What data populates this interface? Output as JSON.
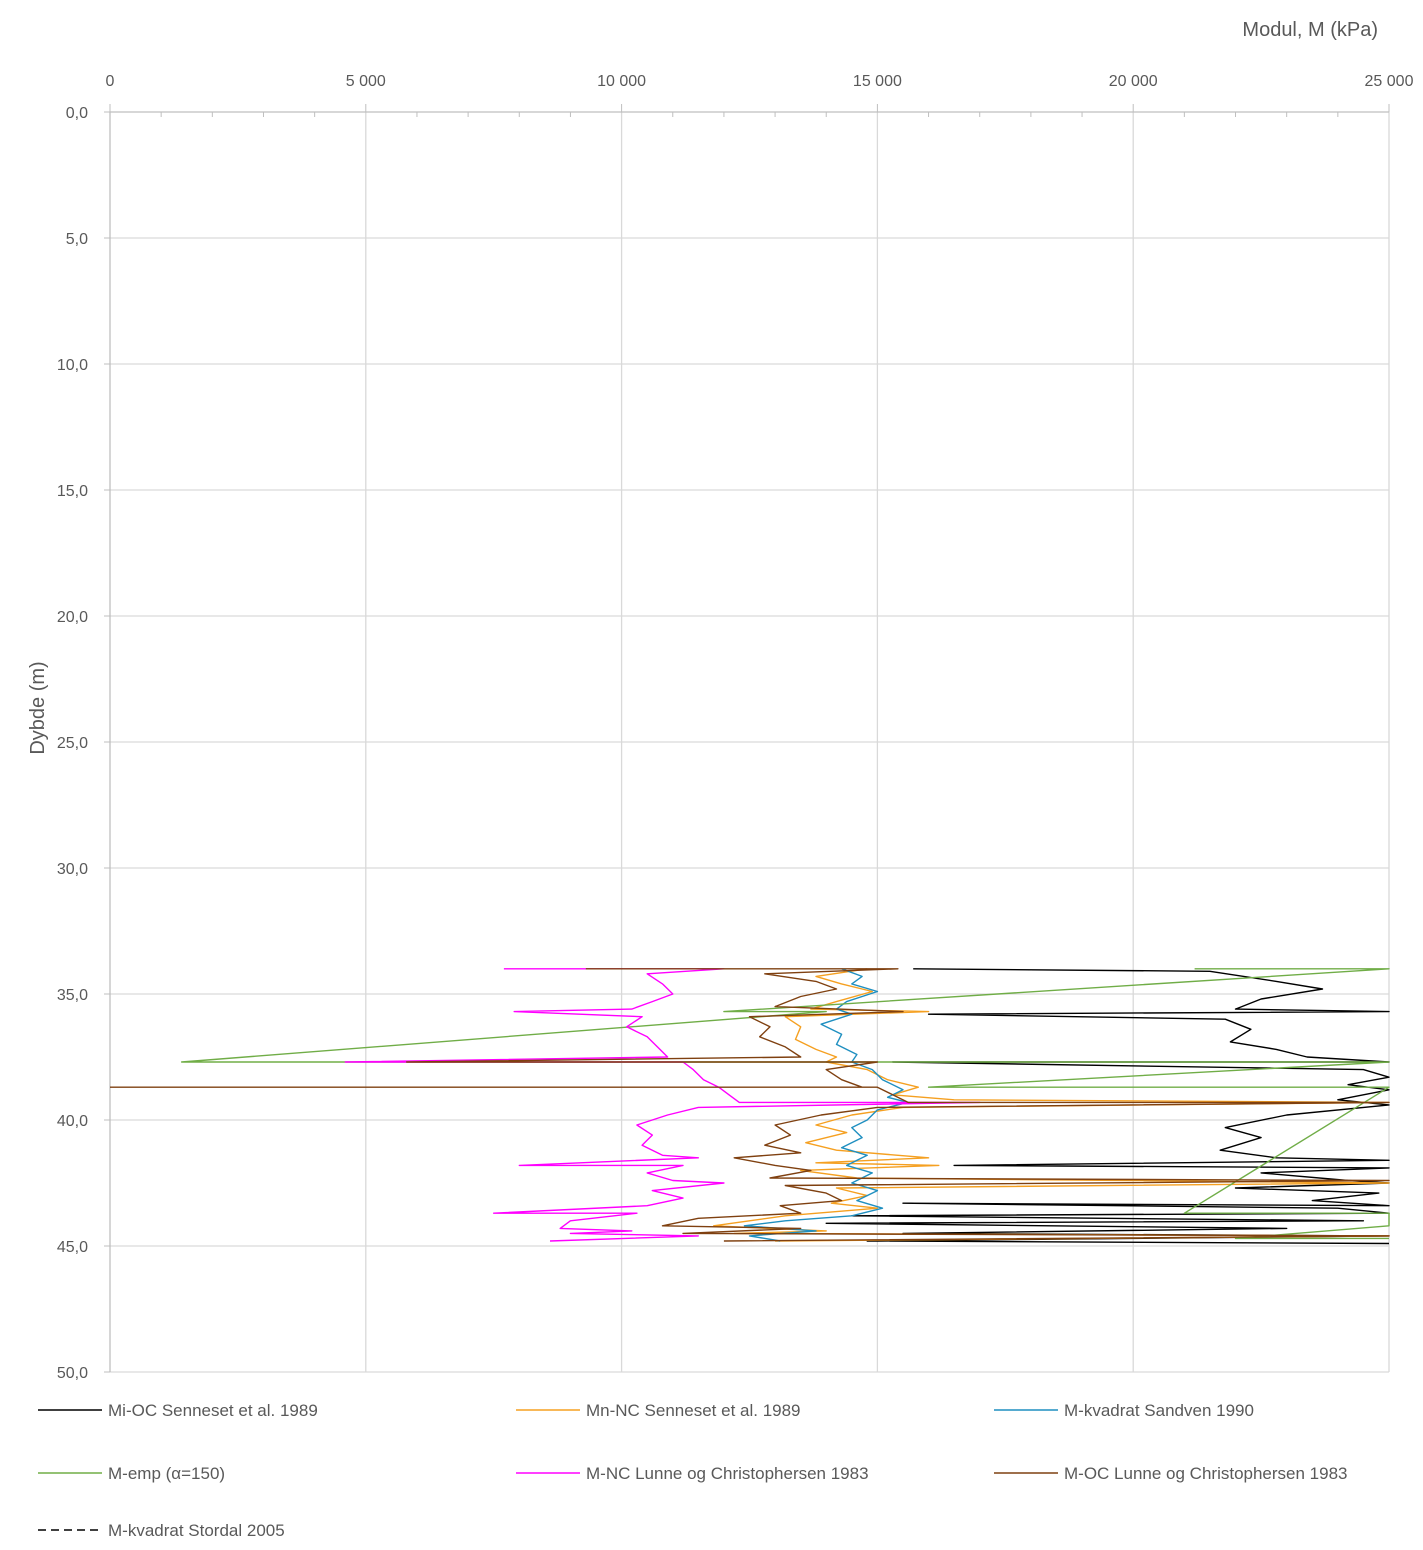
{
  "chart_data": {
    "type": "line",
    "xlabel": "Modul, M (kPa)",
    "ylabel": "Dybde (m)",
    "xlim": [
      0,
      25000
    ],
    "ylim": [
      50,
      0
    ],
    "y_inverted": true,
    "x_axis_position": "top",
    "x_ticks": [
      0,
      5000,
      10000,
      15000,
      20000,
      25000
    ],
    "x_tick_labels": [
      "0",
      "5 000",
      "10 000",
      "15 000",
      "20 000",
      "25 000"
    ],
    "y_ticks": [
      0,
      5,
      10,
      15,
      20,
      25,
      30,
      35,
      40,
      45,
      50
    ],
    "y_tick_labels": [
      "0,0",
      "5,0",
      "10,0",
      "15,0",
      "20,0",
      "25,0",
      "30,0",
      "35,0",
      "40,0",
      "45,0",
      "50,0"
    ],
    "grid": true,
    "legend_position": "bottom",
    "series": [
      {
        "name": "Mi-OC Senneset et al. 1989",
        "color": "#000000",
        "dash": "solid",
        "points": [
          [
            15700,
            34.0
          ],
          [
            21500,
            34.1
          ],
          [
            22800,
            34.5
          ],
          [
            23700,
            34.8
          ],
          [
            22500,
            35.2
          ],
          [
            22000,
            35.6
          ],
          [
            25000,
            35.7
          ],
          [
            16000,
            35.8
          ],
          [
            21800,
            36.0
          ],
          [
            22300,
            36.4
          ],
          [
            21900,
            36.9
          ],
          [
            22800,
            37.2
          ],
          [
            23400,
            37.5
          ],
          [
            25000,
            37.7
          ],
          [
            15300,
            37.7
          ],
          [
            24500,
            38.0
          ],
          [
            25000,
            38.3
          ],
          [
            24200,
            38.6
          ],
          [
            25000,
            38.8
          ],
          [
            24000,
            39.2
          ],
          [
            25000,
            39.4
          ],
          [
            23000,
            39.8
          ],
          [
            21800,
            40.3
          ],
          [
            22500,
            40.7
          ],
          [
            21700,
            41.2
          ],
          [
            22800,
            41.5
          ],
          [
            25000,
            41.6
          ],
          [
            16500,
            41.8
          ],
          [
            25000,
            41.9
          ],
          [
            22500,
            42.1
          ],
          [
            24200,
            42.4
          ],
          [
            25000,
            42.5
          ],
          [
            22000,
            42.7
          ],
          [
            24800,
            42.9
          ],
          [
            23500,
            43.2
          ],
          [
            25000,
            43.4
          ],
          [
            15500,
            43.3
          ],
          [
            24000,
            43.5
          ],
          [
            25000,
            43.7
          ],
          [
            14500,
            43.8
          ],
          [
            24500,
            44.0
          ],
          [
            14000,
            44.1
          ],
          [
            23000,
            44.3
          ],
          [
            15500,
            44.5
          ],
          [
            25000,
            44.6
          ],
          [
            14800,
            44.8
          ],
          [
            25000,
            44.9
          ]
        ]
      },
      {
        "name": "Mn-NC Senneset et al. 1989",
        "color": "#f5a021",
        "dash": "solid",
        "points": [
          [
            14800,
            34.0
          ],
          [
            13800,
            34.3
          ],
          [
            14300,
            34.6
          ],
          [
            14900,
            34.9
          ],
          [
            14200,
            35.3
          ],
          [
            13700,
            35.6
          ],
          [
            16000,
            35.7
          ],
          [
            13200,
            35.9
          ],
          [
            13500,
            36.3
          ],
          [
            13400,
            36.8
          ],
          [
            13800,
            37.2
          ],
          [
            14200,
            37.5
          ],
          [
            14000,
            37.7
          ],
          [
            14800,
            38.0
          ],
          [
            15200,
            38.4
          ],
          [
            15800,
            38.7
          ],
          [
            15300,
            39.0
          ],
          [
            16500,
            39.2
          ],
          [
            25000,
            39.3
          ],
          [
            15500,
            39.5
          ],
          [
            14500,
            39.8
          ],
          [
            13800,
            40.2
          ],
          [
            14400,
            40.5
          ],
          [
            13600,
            40.9
          ],
          [
            14200,
            41.2
          ],
          [
            16000,
            41.5
          ],
          [
            13800,
            41.7
          ],
          [
            16200,
            41.8
          ],
          [
            13500,
            42.0
          ],
          [
            14600,
            42.3
          ],
          [
            25000,
            42.5
          ],
          [
            14200,
            42.7
          ],
          [
            14800,
            43.0
          ],
          [
            14100,
            43.3
          ],
          [
            15000,
            43.5
          ],
          [
            13200,
            43.8
          ],
          [
            12500,
            44.0
          ],
          [
            11800,
            44.2
          ],
          [
            14000,
            44.4
          ],
          [
            12200,
            44.5
          ],
          [
            25000,
            44.6
          ],
          [
            13000,
            44.8
          ]
        ]
      },
      {
        "name": "M-kvadrat Sandven 1990",
        "color": "#1f8fc0",
        "dash": "solid",
        "points": [
          [
            14300,
            34.0
          ],
          [
            14700,
            34.3
          ],
          [
            14500,
            34.6
          ],
          [
            15000,
            34.9
          ],
          [
            14400,
            35.3
          ],
          [
            14200,
            35.6
          ],
          [
            14500,
            35.8
          ],
          [
            13900,
            36.2
          ],
          [
            14300,
            36.6
          ],
          [
            14200,
            37.0
          ],
          [
            14600,
            37.4
          ],
          [
            14500,
            37.7
          ],
          [
            14900,
            38.0
          ],
          [
            15100,
            38.4
          ],
          [
            15500,
            38.8
          ],
          [
            15200,
            39.1
          ],
          [
            15600,
            39.3
          ],
          [
            15000,
            39.6
          ],
          [
            14800,
            40.0
          ],
          [
            14500,
            40.3
          ],
          [
            14700,
            40.7
          ],
          [
            14300,
            41.1
          ],
          [
            14800,
            41.4
          ],
          [
            14400,
            41.8
          ],
          [
            14900,
            42.1
          ],
          [
            14500,
            42.5
          ],
          [
            15000,
            42.8
          ],
          [
            14600,
            43.2
          ],
          [
            15100,
            43.5
          ],
          [
            14500,
            43.8
          ],
          [
            13200,
            44.0
          ],
          [
            12400,
            44.2
          ],
          [
            13800,
            44.4
          ],
          [
            12500,
            44.6
          ],
          [
            13100,
            44.8
          ]
        ]
      },
      {
        "name": "M-emp (α=150)",
        "color": "#70ad47",
        "dash": "solid",
        "points": [
          [
            21200,
            34.0
          ],
          [
            25000,
            34.0
          ],
          [
            12000,
            35.7
          ],
          [
            14000,
            35.7
          ],
          [
            1400,
            37.7
          ],
          [
            25000,
            37.7
          ],
          [
            16000,
            38.7
          ],
          [
            25000,
            38.7
          ],
          [
            21000,
            43.7
          ],
          [
            25000,
            43.7
          ],
          [
            25000,
            44.2
          ],
          [
            22000,
            44.7
          ],
          [
            25000,
            44.7
          ]
        ]
      },
      {
        "name": "M-NC Lunne og Christophersen 1983",
        "color": "#ff00ff",
        "dash": "solid",
        "points": [
          [
            7700,
            34.0
          ],
          [
            12000,
            34.0
          ],
          [
            10500,
            34.2
          ],
          [
            10800,
            34.6
          ],
          [
            11000,
            35.0
          ],
          [
            10600,
            35.3
          ],
          [
            10200,
            35.6
          ],
          [
            7900,
            35.7
          ],
          [
            10400,
            35.9
          ],
          [
            10100,
            36.3
          ],
          [
            10500,
            36.7
          ],
          [
            10700,
            37.1
          ],
          [
            10900,
            37.5
          ],
          [
            4600,
            37.7
          ],
          [
            11200,
            37.7
          ],
          [
            11400,
            38.0
          ],
          [
            11600,
            38.4
          ],
          [
            11900,
            38.7
          ],
          [
            12100,
            39.0
          ],
          [
            12300,
            39.3
          ],
          [
            17000,
            39.3
          ],
          [
            11500,
            39.5
          ],
          [
            10900,
            39.8
          ],
          [
            10300,
            40.2
          ],
          [
            10600,
            40.6
          ],
          [
            10400,
            41.0
          ],
          [
            10800,
            41.4
          ],
          [
            11500,
            41.5
          ],
          [
            8000,
            41.8
          ],
          [
            11200,
            41.8
          ],
          [
            10500,
            42.1
          ],
          [
            11000,
            42.4
          ],
          [
            12000,
            42.5
          ],
          [
            10600,
            42.8
          ],
          [
            11200,
            43.1
          ],
          [
            10500,
            43.4
          ],
          [
            7500,
            43.7
          ],
          [
            10300,
            43.7
          ],
          [
            9000,
            44.0
          ],
          [
            8800,
            44.3
          ],
          [
            10200,
            44.4
          ],
          [
            9000,
            44.5
          ],
          [
            11500,
            44.6
          ],
          [
            8600,
            44.8
          ]
        ]
      },
      {
        "name": "M-OC Lunne og Christophersen 1983",
        "color": "#7f4010",
        "dash": "solid",
        "points": [
          [
            9300,
            34.0
          ],
          [
            15400,
            34.0
          ],
          [
            12800,
            34.2
          ],
          [
            13800,
            34.5
          ],
          [
            14200,
            34.8
          ],
          [
            13500,
            35.1
          ],
          [
            13000,
            35.5
          ],
          [
            15500,
            35.7
          ],
          [
            12500,
            35.9
          ],
          [
            12900,
            36.3
          ],
          [
            12700,
            36.7
          ],
          [
            13200,
            37.1
          ],
          [
            13500,
            37.5
          ],
          [
            5800,
            37.7
          ],
          [
            15000,
            37.7
          ],
          [
            14000,
            38.0
          ],
          [
            14300,
            38.4
          ],
          [
            14700,
            38.7
          ],
          [
            0,
            38.7
          ],
          [
            15000,
            38.7
          ],
          [
            15300,
            39.0
          ],
          [
            15600,
            39.3
          ],
          [
            25000,
            39.3
          ],
          [
            15000,
            39.5
          ],
          [
            13900,
            39.8
          ],
          [
            13000,
            40.2
          ],
          [
            13300,
            40.6
          ],
          [
            12800,
            41.0
          ],
          [
            13500,
            41.3
          ],
          [
            12200,
            41.5
          ],
          [
            13000,
            41.8
          ],
          [
            13700,
            42.0
          ],
          [
            12900,
            42.3
          ],
          [
            25000,
            42.4
          ],
          [
            13200,
            42.6
          ],
          [
            14000,
            42.9
          ],
          [
            14300,
            43.2
          ],
          [
            13100,
            43.4
          ],
          [
            13500,
            43.7
          ],
          [
            11500,
            43.9
          ],
          [
            10800,
            44.2
          ],
          [
            13500,
            44.3
          ],
          [
            11200,
            44.5
          ],
          [
            25000,
            44.6
          ],
          [
            12000,
            44.8
          ]
        ]
      },
      {
        "name": "M-kvadrat Stordal 2005",
        "color": "#000000",
        "dash": "dashed",
        "points": []
      }
    ]
  }
}
